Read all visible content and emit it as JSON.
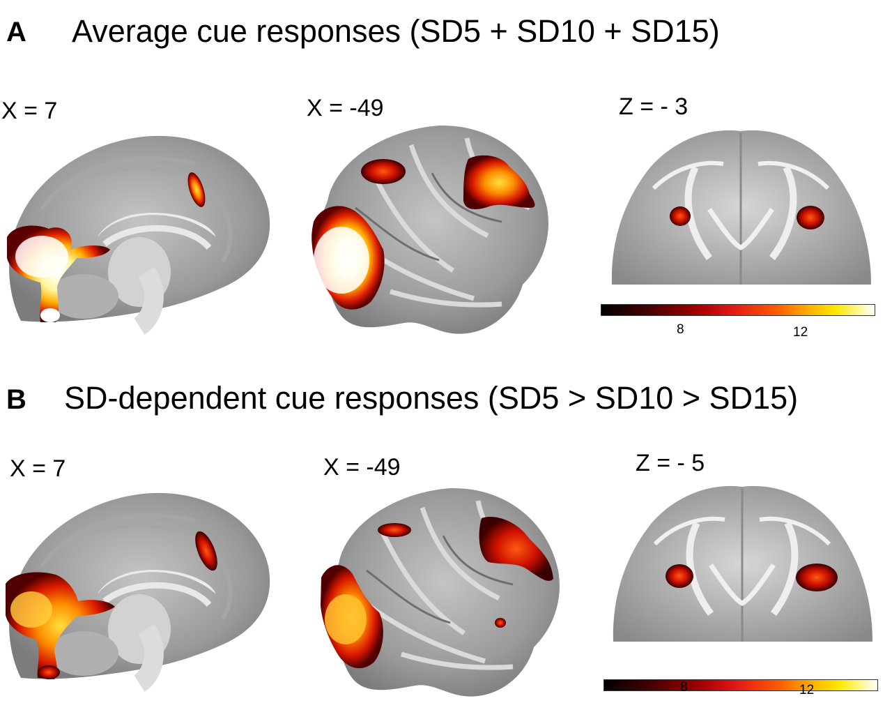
{
  "figure": {
    "panels": [
      {
        "letter": "A",
        "title": "Average cue responses (SD5 + SD10 + SD15)",
        "slices": [
          {
            "label": "X = 7",
            "view": "sagittal-medial"
          },
          {
            "label": "X = -49",
            "view": "sagittal-lateral"
          },
          {
            "label": "Z = - 3",
            "view": "axial"
          }
        ],
        "colorbar": {
          "ticks": [
            "8",
            "12"
          ]
        }
      },
      {
        "letter": "B",
        "title": "SD-dependent cue responses (SD5 > SD10 > SD15)",
        "slices": [
          {
            "label": "X = 7",
            "view": "sagittal-medial"
          },
          {
            "label": "X = -49",
            "view": "sagittal-lateral"
          },
          {
            "label": "Z = - 5",
            "view": "axial"
          }
        ],
        "colorbar": {
          "ticks": [
            "8",
            "12"
          ]
        }
      }
    ]
  }
}
